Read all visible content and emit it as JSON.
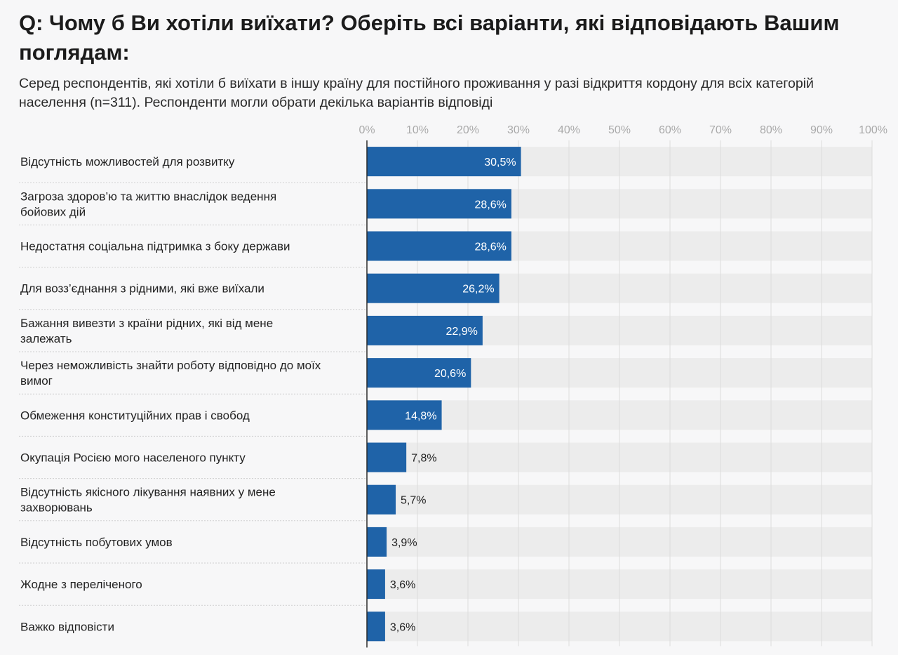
{
  "header": {
    "title": "Q: Чому б Ви хотіли виїхати? Оберіть всі варіанти, які відповідають Вашим поглядам:",
    "subtitle": "Серед респондентів, які хотіли б виїхати в іншу країну для постійного проживання у разі відкриття кордону для всіх категорій населення (n=311). Респонденти могли обрати декілька варіантів відповіді"
  },
  "colors": {
    "bar": "#1f63a8",
    "track": "#ececec",
    "grid": "#dcdcdc",
    "axis": "#2b2b2b"
  },
  "chart_data": {
    "type": "bar",
    "orientation": "horizontal",
    "xlim": [
      0,
      100
    ],
    "x_ticks": [
      "0%",
      "10%",
      "20%",
      "30%",
      "40%",
      "50%",
      "60%",
      "70%",
      "80%",
      "90%",
      "100%"
    ],
    "grid": true,
    "categories": [
      [
        "Відсутність можливостей для розвитку"
      ],
      [
        "Загроза здоров’ю та життю внаслідок ведення",
        "бойових дій"
      ],
      [
        "Недостатня соціальна підтримка з боку держави"
      ],
      [
        "Для возз’єднання з рідними, які вже виїхали"
      ],
      [
        "Бажання вивезти з країни рідних, які від мене",
        "залежать"
      ],
      [
        "Через неможливість знайти роботу відповідно до моїх",
        "вимог"
      ],
      [
        "Обмеження конституційних прав і свобод"
      ],
      [
        "Окупація Росією мого населеного пункту"
      ],
      [
        "Відсутність якісного лікування наявних у мене",
        "захворювань"
      ],
      [
        "Відсутність побутових умов"
      ],
      [
        "Жодне з переліченого"
      ],
      [
        "Важко відповісти"
      ]
    ],
    "values": [
      30.5,
      28.6,
      28.6,
      26.2,
      22.9,
      20.6,
      14.8,
      7.8,
      5.7,
      3.9,
      3.6,
      3.6
    ],
    "value_labels": [
      "30,5%",
      "28,6%",
      "28,6%",
      "26,2%",
      "22,9%",
      "20,6%",
      "14,8%",
      "7,8%",
      "5,7%",
      "3,9%",
      "3,6%",
      "3,6%"
    ]
  }
}
